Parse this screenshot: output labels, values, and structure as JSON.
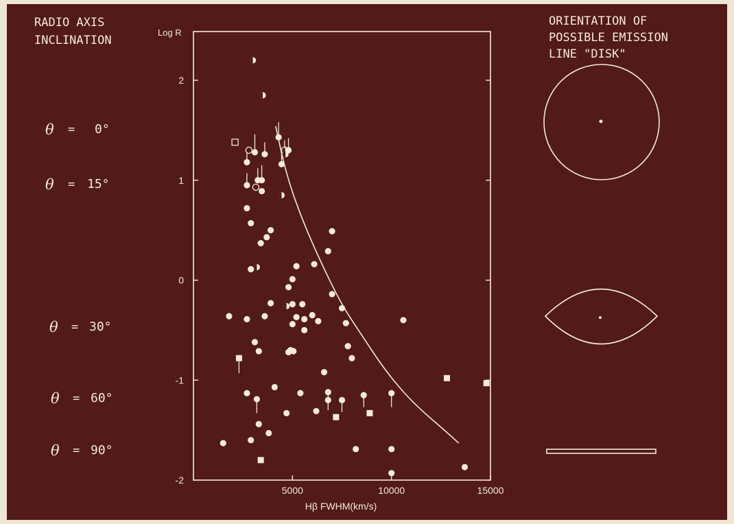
{
  "left_panel": {
    "title_lines": [
      "RADIO AXIS",
      "INCLINATION"
    ],
    "angles": [
      {
        "symbol": "θ",
        "eq": "=",
        "value": "0°"
      },
      {
        "symbol": "θ",
        "eq": "=",
        "value": "15°"
      },
      {
        "symbol": "θ",
        "eq": "=",
        "value": "30°"
      },
      {
        "symbol": "θ",
        "eq": "=",
        "value": "60°"
      },
      {
        "symbol": "θ",
        "eq": "=",
        "value": "90°"
      }
    ]
  },
  "right_panel": {
    "title_lines": [
      "ORIENTATION OF",
      "POSSIBLE EMISSION",
      "LINE \"DISK\""
    ]
  },
  "colors": {
    "background": "#521a1a",
    "foreground": "#f4ead8",
    "frame": "#efe6d4"
  },
  "chart_data": {
    "type": "scatter",
    "ylabel": "Log R",
    "xlabel": "Hβ FWHM(km/s)",
    "xlim": [
      0,
      15000
    ],
    "ylim": [
      -2,
      2.5
    ],
    "x_ticks": [
      5000,
      10000,
      15000
    ],
    "x_tick_labels": [
      "5000",
      "10000",
      "15000"
    ],
    "y_ticks": [
      2,
      1,
      0,
      -1,
      -2
    ],
    "y_tick_labels": [
      "2",
      "1",
      "0",
      "-1",
      "-2"
    ],
    "grid": false,
    "curve": [
      [
        4150,
        1.54
      ],
      [
        4700,
        1.05
      ],
      [
        5500,
        0.6
      ],
      [
        6500,
        0.15
      ],
      [
        7500,
        -0.25
      ],
      [
        8500,
        -0.55
      ],
      [
        9500,
        -0.85
      ],
      [
        10500,
        -1.1
      ],
      [
        11500,
        -1.3
      ],
      [
        12500,
        -1.47
      ],
      [
        13400,
        -1.63
      ]
    ],
    "points": [
      {
        "x": 3000,
        "y": 2.2,
        "m": "half"
      },
      {
        "x": 3500,
        "y": 1.85,
        "m": "half"
      },
      {
        "x": 2100,
        "y": 1.38,
        "m": "sq-open"
      },
      {
        "x": 2800,
        "y": 1.3,
        "m": "open"
      },
      {
        "x": 3100,
        "y": 1.28,
        "m": "dot",
        "up": 0.18
      },
      {
        "x": 3600,
        "y": 1.26,
        "m": "dot",
        "up": 0.12
      },
      {
        "x": 4300,
        "y": 1.43,
        "m": "dot",
        "up": 0.15
      },
      {
        "x": 4600,
        "y": 1.3,
        "m": "open",
        "up": 0.1
      },
      {
        "x": 4800,
        "y": 1.3,
        "m": "dot",
        "up": 0.12
      },
      {
        "x": 4650,
        "y": 1.26,
        "m": "half",
        "up": 0.08
      },
      {
        "x": 2700,
        "y": 1.18,
        "m": "dot",
        "up": 0.1
      },
      {
        "x": 4450,
        "y": 1.16,
        "m": "dot",
        "up": 0.15
      },
      {
        "x": 3250,
        "y": 1.0,
        "m": "dot",
        "up": 0.12
      },
      {
        "x": 3450,
        "y": 1.0,
        "m": "dot",
        "up": 0.15
      },
      {
        "x": 2700,
        "y": 0.95,
        "m": "dot",
        "up": 0.12
      },
      {
        "x": 3150,
        "y": 0.93,
        "m": "open"
      },
      {
        "x": 3450,
        "y": 0.89,
        "m": "dot"
      },
      {
        "x": 4450,
        "y": 0.85,
        "m": "half"
      },
      {
        "x": 2700,
        "y": 0.72,
        "m": "dot"
      },
      {
        "x": 2900,
        "y": 0.57,
        "m": "dot"
      },
      {
        "x": 3900,
        "y": 0.5,
        "m": "dot"
      },
      {
        "x": 7000,
        "y": 0.49,
        "m": "dot"
      },
      {
        "x": 3700,
        "y": 0.43,
        "m": "dot"
      },
      {
        "x": 3400,
        "y": 0.37,
        "m": "dot"
      },
      {
        "x": 6800,
        "y": 0.29,
        "m": "dot"
      },
      {
        "x": 5200,
        "y": 0.14,
        "m": "dot"
      },
      {
        "x": 6100,
        "y": 0.16,
        "m": "dot"
      },
      {
        "x": 3200,
        "y": 0.13,
        "m": "half"
      },
      {
        "x": 2900,
        "y": 0.11,
        "m": "dot"
      },
      {
        "x": 5000,
        "y": 0.01,
        "m": "dot"
      },
      {
        "x": 4800,
        "y": -0.07,
        "m": "dot"
      },
      {
        "x": 7000,
        "y": -0.14,
        "m": "dot"
      },
      {
        "x": 3900,
        "y": -0.23,
        "m": "dot"
      },
      {
        "x": 5000,
        "y": -0.24,
        "m": "dot"
      },
      {
        "x": 5500,
        "y": -0.24,
        "m": "dot"
      },
      {
        "x": 4700,
        "y": -0.26,
        "m": "half"
      },
      {
        "x": 7500,
        "y": -0.28,
        "m": "dot"
      },
      {
        "x": 1800,
        "y": -0.36,
        "m": "dot"
      },
      {
        "x": 3600,
        "y": -0.36,
        "m": "dot"
      },
      {
        "x": 5200,
        "y": -0.37,
        "m": "dot"
      },
      {
        "x": 6000,
        "y": -0.35,
        "m": "dot"
      },
      {
        "x": 2700,
        "y": -0.39,
        "m": "dot"
      },
      {
        "x": 5600,
        "y": -0.39,
        "m": "dot"
      },
      {
        "x": 6300,
        "y": -0.41,
        "m": "dot"
      },
      {
        "x": 7700,
        "y": -0.43,
        "m": "dot"
      },
      {
        "x": 10600,
        "y": -0.4,
        "m": "dot"
      },
      {
        "x": 5000,
        "y": -0.44,
        "m": "dot"
      },
      {
        "x": 5600,
        "y": -0.5,
        "m": "dot"
      },
      {
        "x": 3100,
        "y": -0.62,
        "m": "dot"
      },
      {
        "x": 7800,
        "y": -0.66,
        "m": "dot"
      },
      {
        "x": 3300,
        "y": -0.71,
        "m": "dot"
      },
      {
        "x": 4900,
        "y": -0.7,
        "m": "dot"
      },
      {
        "x": 5050,
        "y": -0.71,
        "m": "dot"
      },
      {
        "x": 4800,
        "y": -0.72,
        "m": "dot"
      },
      {
        "x": 8000,
        "y": -0.78,
        "m": "dot"
      },
      {
        "x": 2300,
        "y": -0.78,
        "m": "sq",
        "down": 0.15
      },
      {
        "x": 6600,
        "y": -0.92,
        "m": "dot"
      },
      {
        "x": 12800,
        "y": -0.98,
        "m": "sq"
      },
      {
        "x": 14800,
        "y": -1.03,
        "m": "sq"
      },
      {
        "x": 4100,
        "y": -1.07,
        "m": "dot"
      },
      {
        "x": 2700,
        "y": -1.13,
        "m": "dot"
      },
      {
        "x": 5400,
        "y": -1.13,
        "m": "dot"
      },
      {
        "x": 6800,
        "y": -1.12,
        "m": "dot",
        "down": 0.12
      },
      {
        "x": 8600,
        "y": -1.15,
        "m": "dot",
        "down": 0.12
      },
      {
        "x": 10000,
        "y": -1.13,
        "m": "dot",
        "down": 0.14
      },
      {
        "x": 3200,
        "y": -1.19,
        "m": "dot",
        "down": 0.14
      },
      {
        "x": 6800,
        "y": -1.2,
        "m": "dot",
        "down": 0.1
      },
      {
        "x": 7500,
        "y": -1.2,
        "m": "dot",
        "down": 0.12
      },
      {
        "x": 4700,
        "y": -1.33,
        "m": "dot"
      },
      {
        "x": 6200,
        "y": -1.31,
        "m": "dot"
      },
      {
        "x": 8900,
        "y": -1.33,
        "m": "sq"
      },
      {
        "x": 7200,
        "y": -1.37,
        "m": "sq"
      },
      {
        "x": 3300,
        "y": -1.44,
        "m": "dot"
      },
      {
        "x": 3800,
        "y": -1.53,
        "m": "dot"
      },
      {
        "x": 2900,
        "y": -1.6,
        "m": "dot"
      },
      {
        "x": 1500,
        "y": -1.63,
        "m": "dot"
      },
      {
        "x": 8200,
        "y": -1.69,
        "m": "dot"
      },
      {
        "x": 10000,
        "y": -1.69,
        "m": "dot"
      },
      {
        "x": 3400,
        "y": -1.8,
        "m": "sq"
      },
      {
        "x": 13700,
        "y": -1.87,
        "m": "dot"
      },
      {
        "x": 10000,
        "y": -1.93,
        "m": "dot"
      }
    ]
  }
}
